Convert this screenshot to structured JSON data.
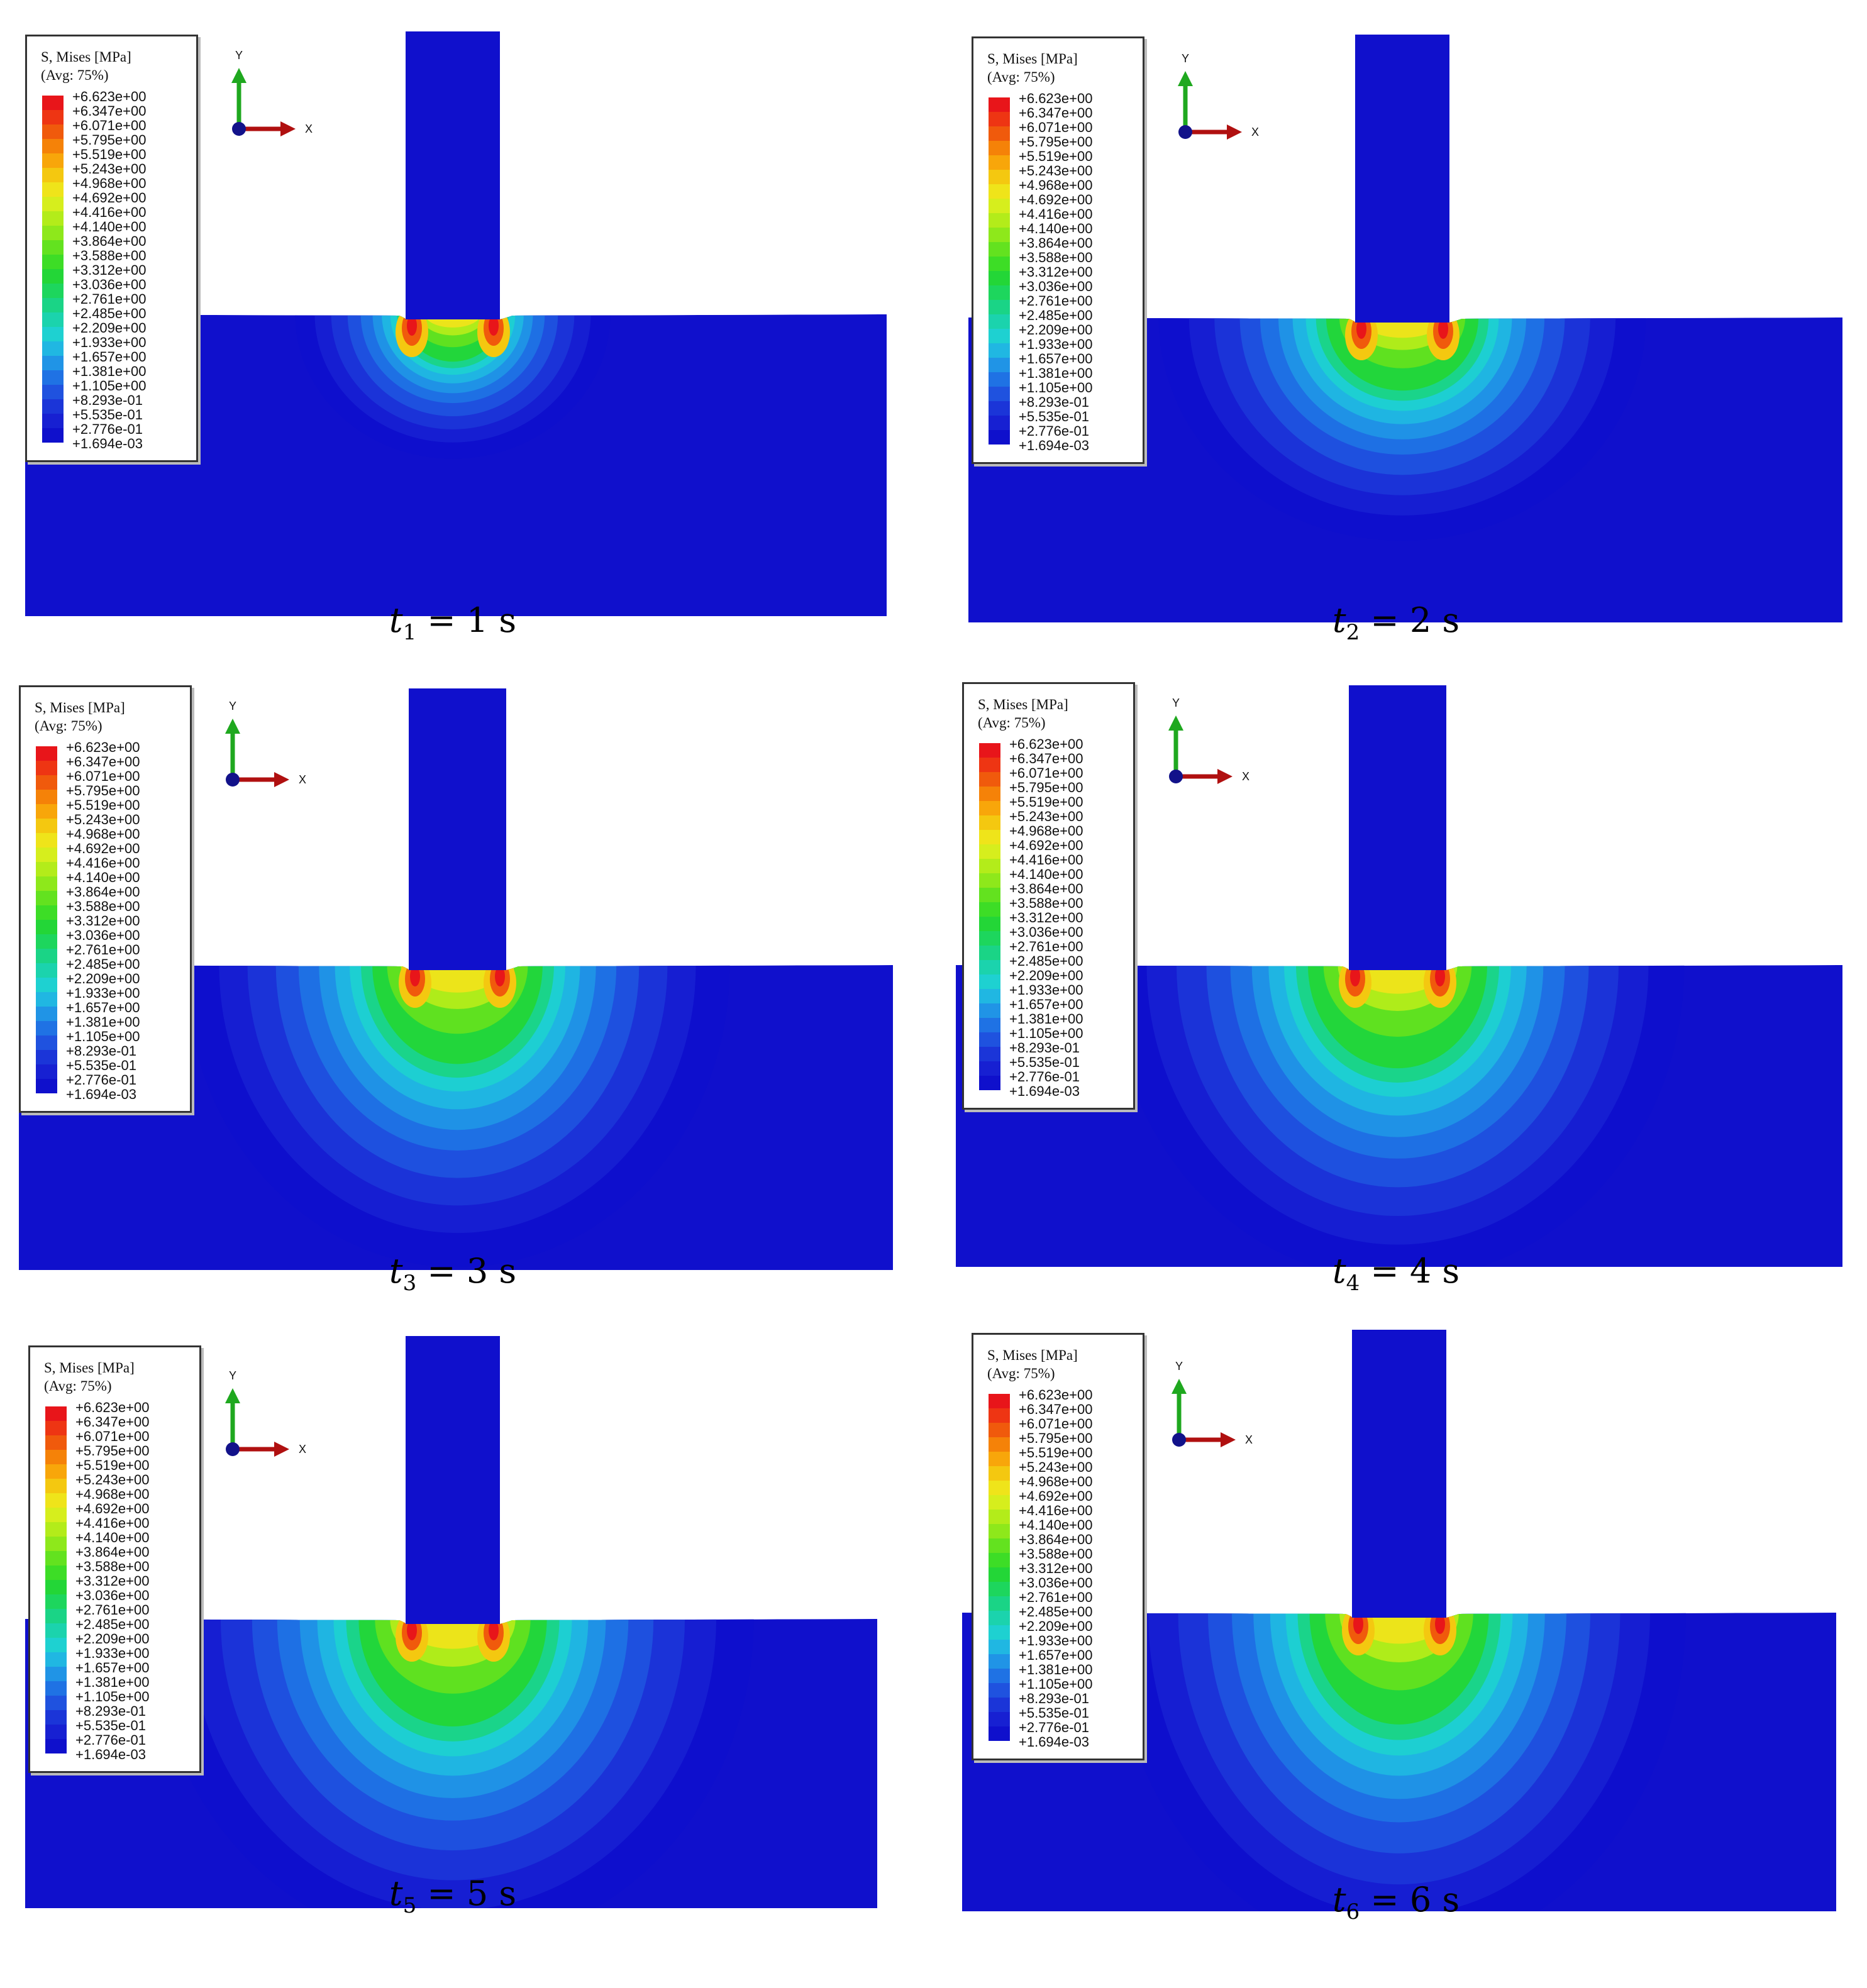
{
  "legend": {
    "title_line1": "S, Mises [MPa]",
    "title_line2": "(Avg: 75%)",
    "values": [
      "+6.623e+00",
      "+6.347e+00",
      "+6.071e+00",
      "+5.795e+00",
      "+5.519e+00",
      "+5.243e+00",
      "+4.968e+00",
      "+4.692e+00",
      "+4.416e+00",
      "+4.140e+00",
      "+3.864e+00",
      "+3.588e+00",
      "+3.312e+00",
      "+3.036e+00",
      "+2.761e+00",
      "+2.485e+00",
      "+2.209e+00",
      "+1.933e+00",
      "+1.657e+00",
      "+1.381e+00",
      "+1.105e+00",
      "+8.293e-01",
      "+5.535e-01",
      "+2.776e-01",
      "+1.694e-03"
    ],
    "colors": [
      "#e8151a",
      "#ee3513",
      "#f05a0c",
      "#f58208",
      "#f8a60a",
      "#f4c810",
      "#efe41a",
      "#d6ee1d",
      "#b3ec1a",
      "#8ee81b",
      "#63e21f",
      "#3ddd26",
      "#23d637",
      "#1dd65d",
      "#1ad486",
      "#1bd3ad",
      "#1ed1d1",
      "#20b7e2",
      "#2094e6",
      "#1f72e4",
      "#1f52df",
      "#1b35d8",
      "#1720d2",
      "#0f10cc"
    ]
  },
  "axis": {
    "y_label": "Y",
    "x_label": "X"
  },
  "panels": [
    {
      "caption_t": "t",
      "caption_sub": "1",
      "caption_rest": " = 1 s"
    },
    {
      "caption_t": "t",
      "caption_sub": "2",
      "caption_rest": " = 2 s"
    },
    {
      "caption_t": "t",
      "caption_sub": "3",
      "caption_rest": " = 3 s"
    },
    {
      "caption_t": "t",
      "caption_sub": "4",
      "caption_rest": " = 4 s"
    },
    {
      "caption_t": "t",
      "caption_sub": "5",
      "caption_rest": " = 5 s"
    },
    {
      "caption_t": "t",
      "caption_sub": "6",
      "caption_rest": " = 6 s"
    }
  ]
}
